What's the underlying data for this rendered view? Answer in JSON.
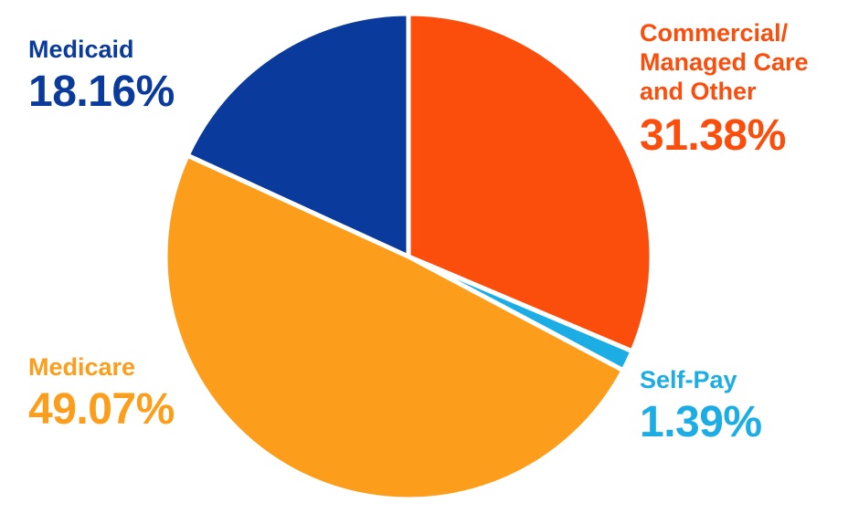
{
  "chart_data": {
    "type": "pie",
    "title": "",
    "background_color": "#FFFFFF",
    "separator_color": "#FFFFFF",
    "start_angle_deg": 0,
    "direction": "clockwise",
    "legend": "labels-around-pie",
    "slices": [
      {
        "id": "commercial",
        "label": "Commercial/ Managed Care and Other",
        "label_lines": [
          "Commercial/",
          "Managed Care",
          "and Other"
        ],
        "value": 31.38,
        "display": "31.38%",
        "color": "#FB4D0C"
      },
      {
        "id": "self-pay",
        "label": "Self-Pay",
        "label_lines": [
          "Self-Pay"
        ],
        "value": 1.39,
        "display": "1.39%",
        "color": "#1CADE4"
      },
      {
        "id": "medicare",
        "label": "Medicare",
        "label_lines": [
          "Medicare"
        ],
        "value": 49.07,
        "display": "49.07%",
        "color": "#FC9E1B"
      },
      {
        "id": "medicaid",
        "label": "Medicaid",
        "label_lines": [
          "Medicaid"
        ],
        "value": 18.16,
        "display": "18.16%",
        "color": "#0A3A9B"
      }
    ]
  }
}
